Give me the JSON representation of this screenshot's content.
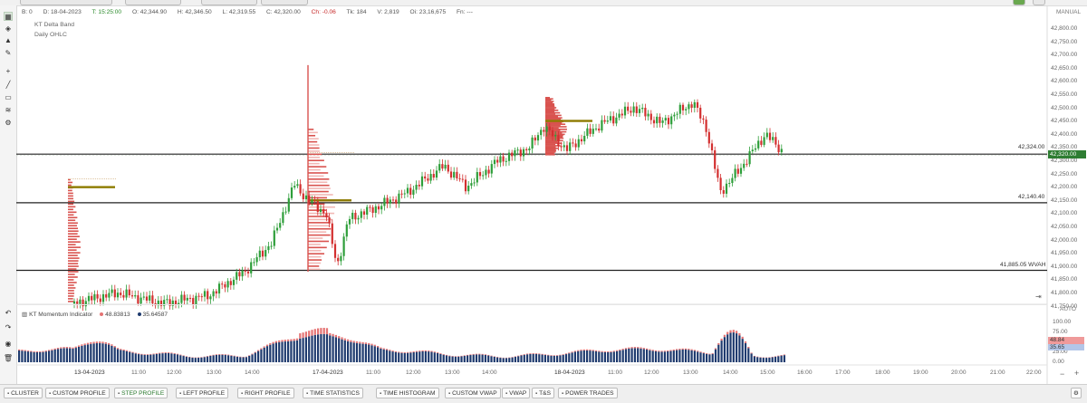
{
  "header": {
    "bar_index": "B: 0",
    "date": "D: 18-04-2023",
    "time": "T: 15:25:00",
    "open": "O: 42,344.90",
    "high": "H: 42,346.50",
    "low": "L: 42,319.55",
    "close": "C: 42,320.00",
    "change": "Ch: -0.06",
    "ticks": "Tk: 184",
    "volume": "V: 2,819",
    "oi": "Oi: 23,16,675",
    "fn": "Fn: ---"
  },
  "overlays": [
    "KT Delta Band",
    "Daily OHLC"
  ],
  "price_axis": {
    "mode_label": "MANUAL",
    "labels": [
      "42,800.00",
      "42,750.00",
      "42,700.00",
      "42,650.00",
      "42,600.00",
      "42,550.00",
      "42,500.00",
      "42,450.00",
      "42,400.00",
      "42,350.00",
      "42,300.00",
      "42,250.00",
      "42,200.00",
      "42,150.00",
      "42,100.00",
      "42,050.00",
      "42,000.00",
      "41,950.00",
      "41,900.00",
      "41,850.00",
      "41,800.00",
      "41,750.00"
    ],
    "current_price": "42,320.00"
  },
  "levels": [
    {
      "label": "42,324.00",
      "value": 42324.0
    },
    {
      "label": "42,140.40",
      "value": 42140.4
    },
    {
      "label": "41,885.05 WVAH",
      "value": 41885.05
    }
  ],
  "indicator": {
    "name": "KT Momentum Indicator",
    "series_a_value": "48.83813",
    "series_b_value": "35.64587",
    "series_a_color": "#e57373",
    "series_b_color": "#1e3a6e",
    "mode_label": "AUTO",
    "axis_labels": [
      "100.00",
      "75.00",
      "50.00",
      "25.00",
      "0.00"
    ],
    "badge_a": "48.84",
    "badge_b": "35.65"
  },
  "time_axis": [
    "13-04-2023",
    "11:00",
    "12:00",
    "13:00",
    "14:00",
    "17-04-2023",
    "11:00",
    "12:00",
    "13:00",
    "14:00",
    "18-04-2023",
    "11:00",
    "12:00",
    "13:00",
    "14:00",
    "15:00",
    "16:00",
    "17:00",
    "18:00",
    "19:00",
    "20:00",
    "21:00",
    "22:00"
  ],
  "colors": {
    "up_candle": "#2e9e3a",
    "down_candle": "#d32f2f",
    "profile_red": "#d9534f",
    "poc_bar": "#8d7b00",
    "level_line": "#222222",
    "accent_green": "#2e7d32"
  },
  "tools": [
    "chart-icon",
    "layers-icon",
    "bell-icon",
    "pencil-icon",
    "crosshair-icon",
    "trendline-icon",
    "rectangle-icon",
    "fibonacci-icon",
    "settings-icon"
  ],
  "bottom_tabs": [
    {
      "label": "CLUSTER",
      "active": false
    },
    {
      "label": "CUSTOM PROFILE",
      "active": false
    },
    {
      "label": "STEP PROFILE",
      "active": true
    },
    {
      "label": "LEFT PROFILE",
      "active": false
    },
    {
      "label": "RIGHT PROFILE",
      "active": false
    },
    {
      "label": "TIME STATISTICS",
      "active": false
    },
    {
      "label": "TIME HISTOGRAM",
      "active": false
    },
    {
      "label": "CUSTOM VWAP",
      "active": false
    },
    {
      "label": "VWAP",
      "active": false
    },
    {
      "label": "T&S",
      "active": false
    },
    {
      "label": "POWER TRADES",
      "active": false
    }
  ]
}
